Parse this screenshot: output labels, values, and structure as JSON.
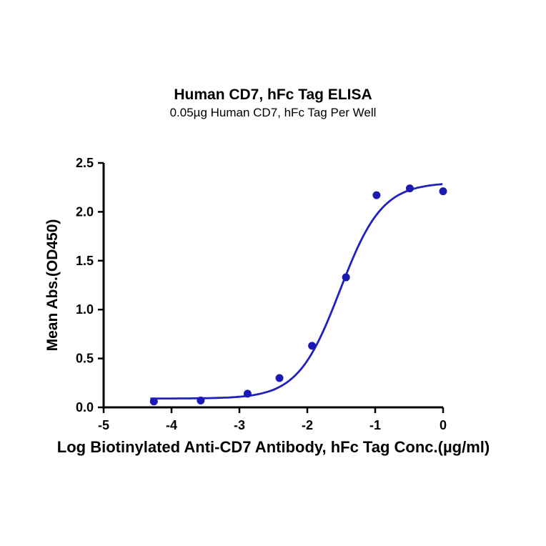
{
  "chart_data": {
    "type": "scatter",
    "title": "Human CD7, hFc Tag ELISA",
    "subtitle": "0.05µg Human CD7, hFc Tag Per Well",
    "xlabel": "Log Biotinylated Anti-CD7 Antibody, hFc Tag Conc.(µg/ml)",
    "ylabel": "Mean Abs.(OD450)",
    "xlim": [
      -5,
      0
    ],
    "ylim": [
      0,
      2.5
    ],
    "x_tick_labels": [
      "-5",
      "-4",
      "-3",
      "-2",
      "-1",
      "0"
    ],
    "y_tick_labels": [
      "0.0",
      "0.5",
      "1.0",
      "1.5",
      "2.0",
      "2.5"
    ],
    "grid": false,
    "legend": "none",
    "axis_color": "#000000",
    "point_color": "#1b1bb3",
    "curve_color": "#2121c0",
    "points": [
      {
        "x": -4.26,
        "y": 0.06
      },
      {
        "x": -3.57,
        "y": 0.07
      },
      {
        "x": -2.88,
        "y": 0.14
      },
      {
        "x": -2.41,
        "y": 0.3
      },
      {
        "x": -1.93,
        "y": 0.63
      },
      {
        "x": -1.43,
        "y": 1.33
      },
      {
        "x": -0.98,
        "y": 2.17
      },
      {
        "x": -0.49,
        "y": 2.24
      },
      {
        "x": 0.0,
        "y": 2.21
      }
    ],
    "fit_4pl": {
      "bottom": 0.09,
      "top": 2.3,
      "logEC50": -1.52,
      "hillslope": 1.4,
      "x_start": -4.3,
      "x_end": 0.0
    }
  }
}
